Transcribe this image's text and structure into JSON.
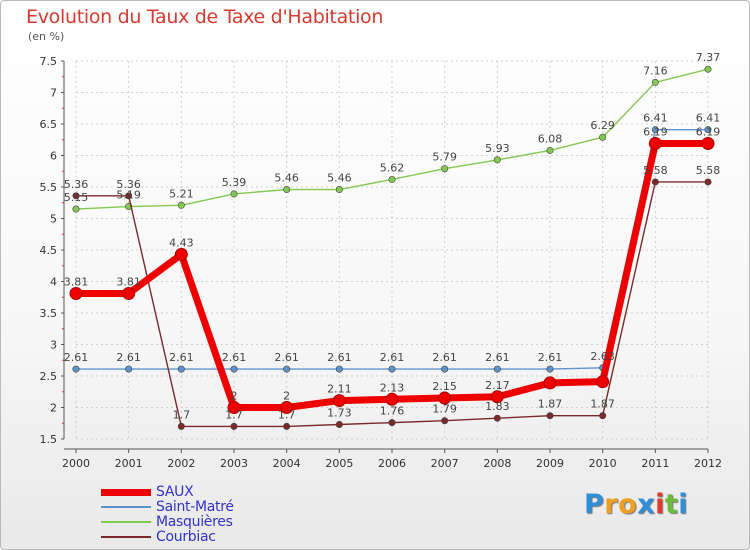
{
  "chart_data": {
    "type": "line",
    "title": "Evolution du Taux de Taxe d'Habitation",
    "subtitle": "(en %)",
    "xlabel": "",
    "ylabel": "",
    "categories": [
      "2000",
      "2001",
      "2002",
      "2003",
      "2004",
      "2005",
      "2006",
      "2007",
      "2008",
      "2009",
      "2010",
      "2011",
      "2012"
    ],
    "ylim": [
      1.5,
      7.5
    ],
    "yticks": [
      "1.5",
      "2",
      "2.5",
      "3",
      "3.5",
      "4",
      "4.5",
      "5",
      "5.5",
      "6",
      "6.5",
      "7",
      "7.5"
    ],
    "grid": true,
    "legend_position": "bottom-left",
    "series": [
      {
        "name": "SAUX",
        "color": "#ee0000",
        "values": [
          3.81,
          3.81,
          4.43,
          2,
          2,
          2.11,
          2.13,
          2.15,
          2.17,
          2.39,
          2.41,
          6.19,
          6.19
        ],
        "labels": [
          "3.81",
          "3.81",
          "4.43",
          "2",
          "2",
          "2.11",
          "2.13",
          "2.15",
          "2.17",
          "",
          "",
          "",
          ""
        ]
      },
      {
        "name": "Saint-Matré",
        "color": "#5e93c9",
        "values": [
          2.61,
          2.61,
          2.61,
          2.61,
          2.61,
          2.61,
          2.61,
          2.61,
          2.61,
          2.61,
          2.63,
          6.41,
          6.41
        ],
        "labels": [
          "2.61",
          "2.61",
          "2.61",
          "2.61",
          "2.61",
          "2.61",
          "2.61",
          "2.61",
          "2.61",
          "2.61",
          "2.63",
          "6.41",
          "6.41"
        ]
      },
      {
        "name": "Masquières",
        "color": "#84c854",
        "values": [
          5.15,
          5.19,
          5.21,
          5.39,
          5.46,
          5.46,
          5.62,
          5.79,
          5.93,
          6.08,
          6.29,
          7.16,
          7.37
        ],
        "labels": [
          "5.15",
          "5.19",
          "5.21",
          "5.39",
          "5.46",
          "5.46",
          "5.62",
          "5.79",
          "5.93",
          "6.08",
          "6.29",
          "7.16",
          "7.37"
        ]
      },
      {
        "name": "Courbiac",
        "color": "#7a2a2a",
        "values": [
          5.36,
          5.36,
          1.7,
          1.7,
          1.7,
          1.73,
          1.76,
          1.79,
          1.83,
          1.87,
          1.87,
          5.58,
          5.58
        ],
        "labels": [
          "5.36",
          "5.36",
          "1.7",
          "1.7",
          "1.7",
          "1.73",
          "1.76",
          "1.79",
          "1.83",
          "1.87",
          "1.87",
          "5.58",
          "5.58"
        ]
      }
    ],
    "extra_labels": [
      {
        "category_index": 11,
        "value": 6.19,
        "text": "6.19"
      },
      {
        "category_index": 12,
        "value": 6.19,
        "text": "6.19"
      }
    ]
  },
  "legend": {
    "items": [
      {
        "label": "SAUX",
        "color": "#ee0000",
        "thickness": 7
      },
      {
        "label": "Saint-Matré",
        "color": "#5e93c9",
        "thickness": 2
      },
      {
        "label": "Masquières",
        "color": "#84c854",
        "thickness": 2
      },
      {
        "label": "Courbiac",
        "color": "#7a2a2a",
        "thickness": 2
      }
    ]
  },
  "logo": {
    "letters": [
      {
        "ch": "P",
        "color": "#2f8fd8"
      },
      {
        "ch": "r",
        "color": "#f0a021"
      },
      {
        "ch": "o",
        "color": "#f0a021"
      },
      {
        "ch": "x",
        "color": "#2f8fd8"
      },
      {
        "ch": "i",
        "color": "#e23b2a"
      },
      {
        "ch": "t",
        "color": "#6dbb3a"
      },
      {
        "ch": "i",
        "color": "#2f8fd8"
      }
    ]
  }
}
